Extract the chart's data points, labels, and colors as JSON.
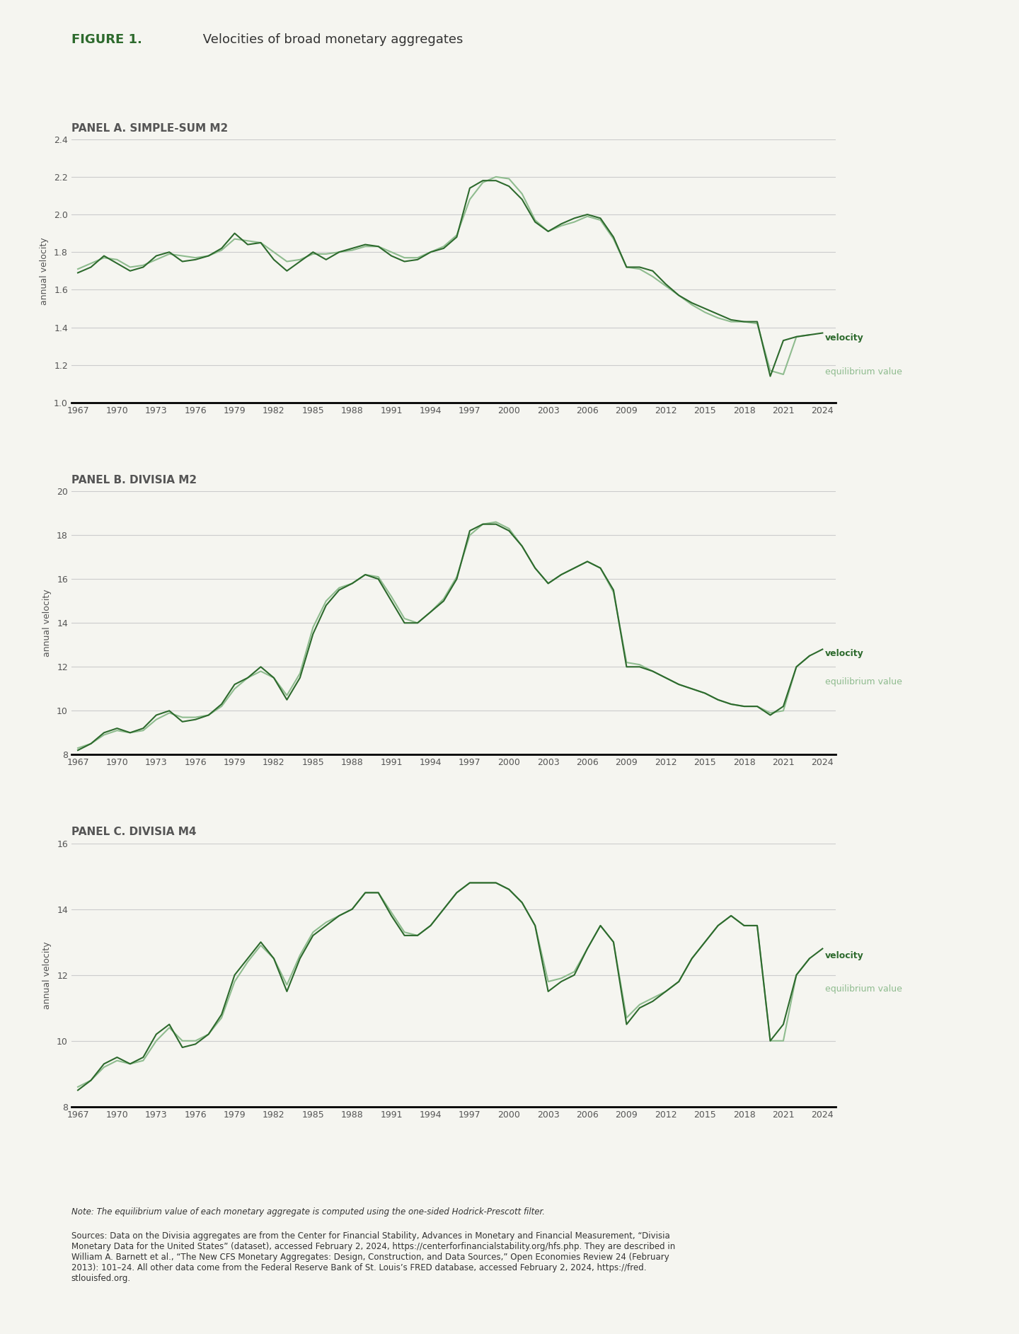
{
  "figure_title_bold": "FIGURE 1.",
  "figure_title_rest": " Velocities of broad monetary aggregates",
  "panel_titles": [
    "PANEL A. SIMPLE-SUM M2",
    "PANEL B. DIVISIA M2",
    "PANEL C. DIVISIA M4"
  ],
  "ylabel": "annual velocity",
  "velocity_color": "#2d6a2d",
  "equilibrium_color": "#8fbc8f",
  "background_color": "#f5f5f0",
  "note_text": "Note: The equilibrium value of each monetary aggregate is computed using the one-sided Hodrick-Prescott filter.",
  "sources_text": "Sources: Data on the Divisia aggregates are from the Center for Financial Stability, Advances in Monetary and Financial Measurement, “Divisia\nMonetary Data for the United States” (dataset), accessed February 2, 2024, https://centerforfinancialstability.org/hfs.php. They are described in\nWilliam A. Barnett et al., “The New CFS Monetary Aggregates: Design, Construction, and Data Sources,” Open Economies Review 24 (February\n2013): 101–24. All other data come from the Federal Reserve Bank of St. Louis’s FRED database, accessed February 2, 2024, https://fred.\nstlouisfed.org.",
  "panelA": {
    "ylim": [
      1.0,
      2.4
    ],
    "yticks": [
      1.0,
      1.2,
      1.4,
      1.6,
      1.8,
      2.0,
      2.2,
      2.4
    ],
    "years": [
      1967,
      1968,
      1969,
      1970,
      1971,
      1972,
      1973,
      1974,
      1975,
      1976,
      1977,
      1978,
      1979,
      1980,
      1981,
      1982,
      1983,
      1984,
      1985,
      1986,
      1987,
      1988,
      1989,
      1990,
      1991,
      1992,
      1993,
      1994,
      1995,
      1996,
      1997,
      1998,
      1999,
      2000,
      2001,
      2002,
      2003,
      2004,
      2005,
      2006,
      2007,
      2008,
      2009,
      2010,
      2011,
      2012,
      2013,
      2014,
      2015,
      2016,
      2017,
      2018,
      2019,
      2020,
      2021,
      2022,
      2023,
      2024
    ],
    "velocity": [
      1.69,
      1.72,
      1.78,
      1.74,
      1.7,
      1.72,
      1.78,
      1.8,
      1.75,
      1.76,
      1.78,
      1.82,
      1.9,
      1.84,
      1.85,
      1.76,
      1.7,
      1.75,
      1.8,
      1.76,
      1.8,
      1.82,
      1.84,
      1.83,
      1.78,
      1.75,
      1.76,
      1.8,
      1.82,
      1.88,
      2.14,
      2.18,
      2.18,
      2.15,
      2.08,
      1.96,
      1.91,
      1.95,
      1.98,
      2.0,
      1.98,
      1.88,
      1.72,
      1.72,
      1.7,
      1.63,
      1.57,
      1.53,
      1.5,
      1.47,
      1.44,
      1.43,
      1.43,
      1.14,
      1.33,
      1.35,
      1.36,
      1.37
    ],
    "equilibrium": [
      1.71,
      1.74,
      1.77,
      1.76,
      1.72,
      1.73,
      1.76,
      1.79,
      1.78,
      1.77,
      1.78,
      1.81,
      1.87,
      1.86,
      1.85,
      1.8,
      1.75,
      1.76,
      1.79,
      1.79,
      1.8,
      1.81,
      1.83,
      1.83,
      1.8,
      1.77,
      1.77,
      1.8,
      1.83,
      1.89,
      2.08,
      2.17,
      2.2,
      2.19,
      2.11,
      1.97,
      1.91,
      1.94,
      1.96,
      1.99,
      1.97,
      1.87,
      1.72,
      1.71,
      1.67,
      1.62,
      1.57,
      1.52,
      1.48,
      1.45,
      1.43,
      1.43,
      1.42,
      1.17,
      1.15,
      1.35,
      1.36,
      null
    ]
  },
  "panelB": {
    "ylim": [
      8,
      20
    ],
    "yticks": [
      8,
      10,
      12,
      14,
      16,
      18,
      20
    ],
    "years": [
      1967,
      1968,
      1969,
      1970,
      1971,
      1972,
      1973,
      1974,
      1975,
      1976,
      1977,
      1978,
      1979,
      1980,
      1981,
      1982,
      1983,
      1984,
      1985,
      1986,
      1987,
      1988,
      1989,
      1990,
      1991,
      1992,
      1993,
      1994,
      1995,
      1996,
      1997,
      1998,
      1999,
      2000,
      2001,
      2002,
      2003,
      2004,
      2005,
      2006,
      2007,
      2008,
      2009,
      2010,
      2011,
      2012,
      2013,
      2014,
      2015,
      2016,
      2017,
      2018,
      2019,
      2020,
      2021,
      2022,
      2023,
      2024
    ],
    "velocity": [
      8.2,
      8.5,
      9.0,
      9.2,
      9.0,
      9.2,
      9.8,
      10.0,
      9.5,
      9.6,
      9.8,
      10.3,
      11.2,
      11.5,
      12.0,
      11.5,
      10.5,
      11.5,
      13.5,
      14.8,
      15.5,
      15.8,
      16.2,
      16.0,
      15.0,
      14.0,
      14.0,
      14.5,
      15.0,
      16.0,
      18.2,
      18.5,
      18.5,
      18.2,
      17.5,
      16.5,
      15.8,
      16.2,
      16.5,
      16.8,
      16.5,
      15.5,
      12.0,
      12.0,
      11.8,
      11.5,
      11.2,
      11.0,
      10.8,
      10.5,
      10.3,
      10.2,
      10.2,
      9.8,
      10.2,
      12.0,
      12.5,
      12.8
    ],
    "equilibrium": [
      8.3,
      8.5,
      8.9,
      9.1,
      9.0,
      9.1,
      9.6,
      9.9,
      9.7,
      9.7,
      9.8,
      10.2,
      11.0,
      11.5,
      11.8,
      11.5,
      10.7,
      11.7,
      13.8,
      15.0,
      15.6,
      15.8,
      16.2,
      16.1,
      15.2,
      14.2,
      14.0,
      14.5,
      15.1,
      16.1,
      18.0,
      18.5,
      18.6,
      18.3,
      17.5,
      16.5,
      15.8,
      16.2,
      16.5,
      16.8,
      16.5,
      15.4,
      12.2,
      12.1,
      11.8,
      11.5,
      11.2,
      11.0,
      10.8,
      10.5,
      10.3,
      10.2,
      10.2,
      9.9,
      10.0,
      12.0,
      12.5,
      null
    ]
  },
  "panelC": {
    "ylim": [
      8,
      16
    ],
    "yticks": [
      8,
      10,
      12,
      14,
      16
    ],
    "years": [
      1967,
      1968,
      1969,
      1970,
      1971,
      1972,
      1973,
      1974,
      1975,
      1976,
      1977,
      1978,
      1979,
      1980,
      1981,
      1982,
      1983,
      1984,
      1985,
      1986,
      1987,
      1988,
      1989,
      1990,
      1991,
      1992,
      1993,
      1994,
      1995,
      1996,
      1997,
      1998,
      1999,
      2000,
      2001,
      2002,
      2003,
      2004,
      2005,
      2006,
      2007,
      2008,
      2009,
      2010,
      2011,
      2012,
      2013,
      2014,
      2015,
      2016,
      2017,
      2018,
      2019,
      2020,
      2021,
      2022,
      2023,
      2024
    ],
    "velocity": [
      8.5,
      8.8,
      9.3,
      9.5,
      9.3,
      9.5,
      10.2,
      10.5,
      9.8,
      9.9,
      10.2,
      10.8,
      12.0,
      12.5,
      13.0,
      12.5,
      11.5,
      12.5,
      13.2,
      13.5,
      13.8,
      14.0,
      14.5,
      14.5,
      13.8,
      13.2,
      13.2,
      13.5,
      14.0,
      14.5,
      14.8,
      14.8,
      14.8,
      14.6,
      14.2,
      13.5,
      11.5,
      11.8,
      12.0,
      12.8,
      13.5,
      13.0,
      10.5,
      11.0,
      11.2,
      11.5,
      11.8,
      12.5,
      13.0,
      13.5,
      13.8,
      13.5,
      13.5,
      10.0,
      10.5,
      12.0,
      12.5,
      12.8
    ],
    "equilibrium": [
      8.6,
      8.8,
      9.2,
      9.4,
      9.3,
      9.4,
      10.0,
      10.4,
      10.0,
      10.0,
      10.2,
      10.7,
      11.8,
      12.4,
      12.9,
      12.5,
      11.7,
      12.6,
      13.3,
      13.6,
      13.8,
      14.0,
      14.5,
      14.5,
      13.9,
      13.3,
      13.2,
      13.5,
      14.0,
      14.5,
      14.8,
      14.8,
      14.8,
      14.6,
      14.2,
      13.5,
      11.8,
      11.9,
      12.1,
      12.8,
      13.5,
      13.0,
      10.7,
      11.1,
      11.3,
      11.5,
      11.8,
      12.5,
      13.0,
      13.5,
      13.8,
      13.5,
      13.5,
      10.0,
      10.0,
      12.0,
      12.5,
      null
    ]
  },
  "xtick_years": [
    1967,
    1970,
    1973,
    1976,
    1979,
    1982,
    1985,
    1988,
    1991,
    1994,
    1997,
    2000,
    2003,
    2006,
    2009,
    2012,
    2015,
    2018,
    2021,
    2024
  ]
}
